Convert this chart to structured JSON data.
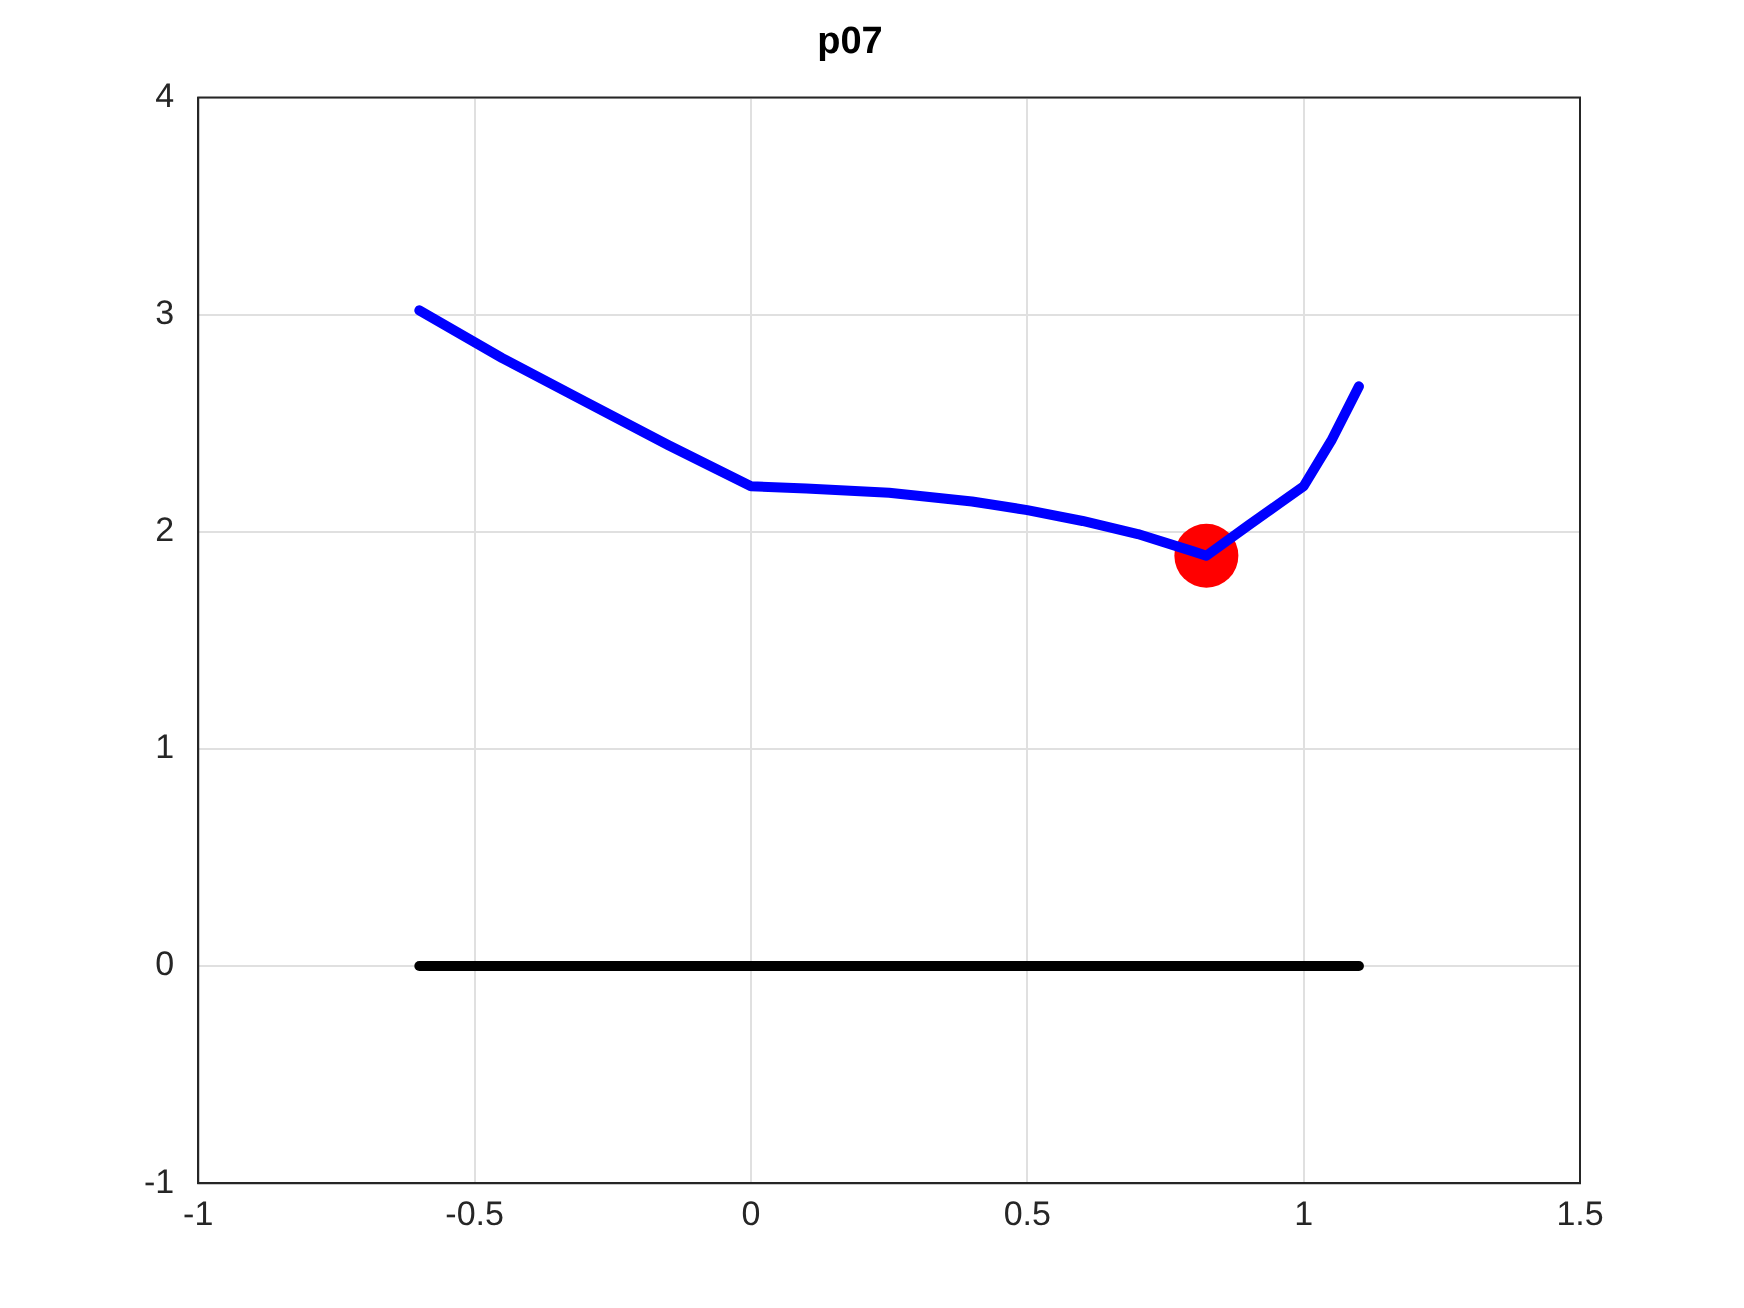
{
  "chart_data": {
    "type": "line",
    "title": "p07",
    "xlim": [
      -1,
      1.5
    ],
    "xticks": [
      -1,
      -0.5,
      0,
      0.5,
      1,
      1.5
    ],
    "ylim": [
      -1,
      4
    ],
    "yticks": [
      -1,
      0,
      1,
      2,
      3,
      4
    ],
    "grid": true,
    "legend": false,
    "marker": "none",
    "series": [
      {
        "type": "line",
        "color": "#0000ff",
        "x": [
          -0.6,
          -0.45,
          -0.3,
          -0.15,
          0,
          0.1,
          0.25,
          0.4,
          0.5,
          0.6,
          0.7,
          0.8,
          0.824,
          0.9,
          1,
          1.05,
          1.1
        ],
        "values": [
          3.02,
          2.8,
          2.6,
          2.4,
          2.21,
          2.2,
          2.18,
          2.14,
          2.1,
          2.05,
          1.99,
          1.91,
          1.89,
          2.03,
          2.21,
          2.42,
          2.67
        ]
      },
      {
        "type": "line",
        "color": "#000000",
        "x": [
          -0.6,
          1.1
        ],
        "values": [
          0,
          0
        ]
      },
      {
        "type": "scatter",
        "color": "#ff0000",
        "marker": "circle",
        "x": [
          0.824
        ],
        "values": [
          1.89
        ]
      }
    ]
  }
}
